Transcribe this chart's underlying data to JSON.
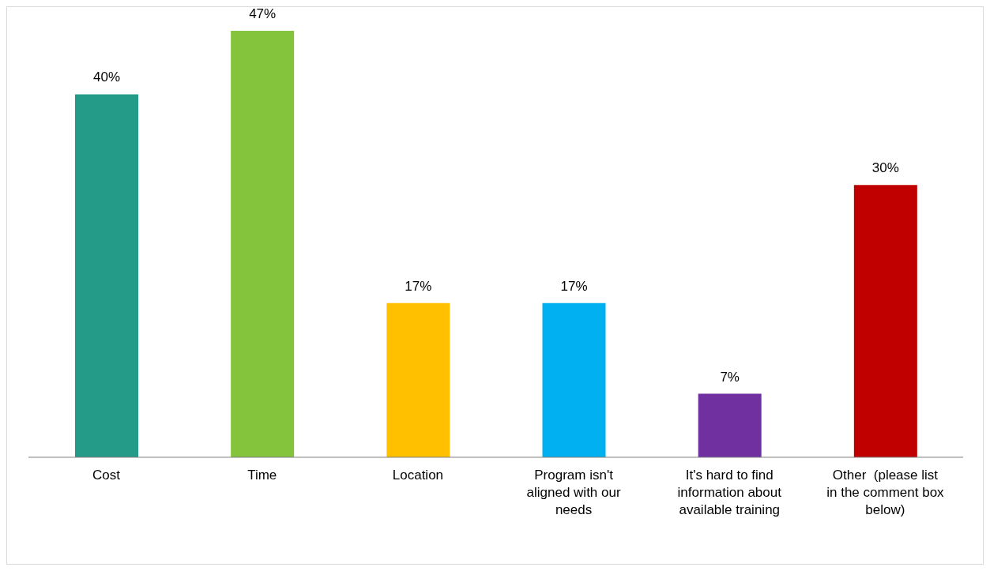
{
  "chart_data": {
    "type": "bar",
    "categories": [
      "Cost",
      "Time",
      "Location",
      "Program isn't aligned with our needs",
      "It's hard to find information about available training",
      "Other  (please list in the comment box below)"
    ],
    "values": [
      40,
      47,
      17,
      17,
      7,
      30
    ],
    "colors": [
      "#249a89",
      "#84c43c",
      "#ffc000",
      "#00b0f0",
      "#7030a0",
      "#c00000"
    ],
    "value_labels": [
      "40%",
      "47%",
      "17%",
      "17%",
      "7%",
      "30%"
    ],
    "grid": false,
    "legend": false
  }
}
